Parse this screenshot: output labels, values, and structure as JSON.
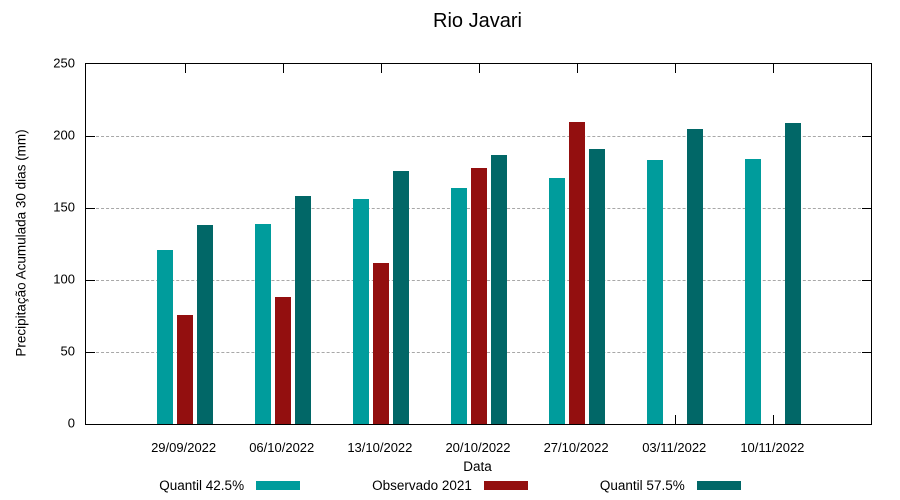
{
  "title": "Rio Javari",
  "y_axis": {
    "label": "Precipitação Acumulada 30 dias (mm)",
    "ticks": [
      0,
      50,
      100,
      150,
      200,
      250
    ],
    "min": 0,
    "max": 250
  },
  "x_axis": {
    "label": "Data",
    "categories": [
      "29/09/2022",
      "06/10/2022",
      "13/10/2022",
      "20/10/2022",
      "27/10/2022",
      "03/11/2022",
      "10/11/2022"
    ]
  },
  "legend": [
    {
      "label": "Quantil 42.5%",
      "color": "#009c9c"
    },
    {
      "label": "Observado 2021",
      "color": "#930f0f"
    },
    {
      "label": "Quantil 57.5%",
      "color": "#016767"
    }
  ],
  "chart_data": {
    "type": "bar",
    "title": "Rio Javari",
    "xlabel": "Data",
    "ylabel": "Precipitação Acumulada 30 dias (mm)",
    "ylim": [
      0,
      250
    ],
    "grid": "horizontal-dashed",
    "legend_position": "bottom",
    "categories": [
      "29/09/2022",
      "06/10/2022",
      "13/10/2022",
      "20/10/2022",
      "27/10/2022",
      "03/11/2022",
      "10/11/2022"
    ],
    "series": [
      {
        "name": "Quantil 42.5%",
        "color": "#009c9c",
        "values": [
          121,
          139,
          156,
          164,
          171,
          183,
          184
        ]
      },
      {
        "name": "Observado 2021",
        "color": "#930f0f",
        "values": [
          76,
          88,
          112,
          178,
          210,
          null,
          null
        ]
      },
      {
        "name": "Quantil 57.5%",
        "color": "#016767",
        "values": [
          138,
          158,
          176,
          187,
          191,
          205,
          209
        ]
      }
    ]
  }
}
